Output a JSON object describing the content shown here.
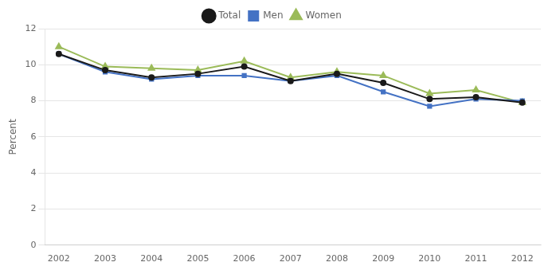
{
  "chart_data": {
    "type": "line",
    "x": [
      2002,
      2003,
      2004,
      2005,
      2006,
      2007,
      2008,
      2009,
      2010,
      2011,
      2012
    ],
    "series": [
      {
        "name": "Total",
        "color": "#1a1a1a",
        "marker": "circle",
        "values": [
          10.6,
          9.7,
          9.3,
          9.5,
          9.9,
          9.1,
          9.5,
          9.0,
          8.1,
          8.2,
          7.9
        ]
      },
      {
        "name": "Men",
        "color": "#4472c4",
        "marker": "square",
        "values": [
          10.6,
          9.6,
          9.2,
          9.4,
          9.4,
          9.1,
          9.4,
          8.5,
          7.7,
          8.1,
          8.0
        ]
      },
      {
        "name": "Women",
        "color": "#9bbb59",
        "marker": "triangle",
        "values": [
          11.0,
          9.9,
          9.8,
          9.7,
          10.2,
          9.3,
          9.6,
          9.4,
          8.4,
          8.6,
          7.9
        ]
      }
    ],
    "ylabel": "Percent",
    "xlim": [
      2001.7,
      2012.4
    ],
    "xticks": [
      2002,
      2003,
      2004,
      2005,
      2006,
      2007,
      2008,
      2009,
      2010,
      2011,
      2012
    ],
    "ylim": [
      0,
      12
    ],
    "yticks": [
      0,
      2,
      4,
      6,
      8,
      10,
      12
    ],
    "grid": "y",
    "legend": "top"
  }
}
